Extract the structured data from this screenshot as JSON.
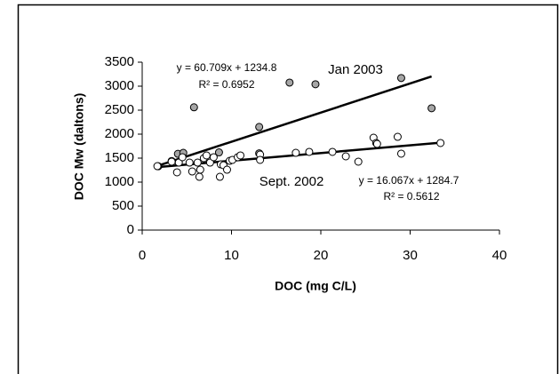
{
  "chart_data": {
    "type": "scatter",
    "x_label": "DOC (mg C/L)",
    "y_label": "DOC Mw (daltons)",
    "xlim": [
      0,
      40
    ],
    "xticks": [
      0,
      10,
      20,
      30,
      40
    ],
    "ylim": [
      0,
      3500
    ],
    "yticks": [
      0,
      500,
      1000,
      1500,
      2000,
      2500,
      3000,
      3500
    ],
    "series": [
      {
        "name": "Jan 2003",
        "color": "#a6a6a6",
        "x": [
          1.8,
          3.3,
          4.0,
          4.6,
          8.6,
          5.8,
          13.1,
          13.1,
          16.5,
          19.4,
          29.0,
          32.4
        ],
        "values": [
          1330,
          1440,
          1590,
          1610,
          1620,
          2560,
          2150,
          1600,
          3075,
          3040,
          3170,
          2540
        ],
        "trendline": {
          "slope": 60.709,
          "intercept": 1234.8,
          "equation": "y = 60.709x + 1234.8",
          "r2": "R² = 0.6952"
        }
      },
      {
        "name": "Sept. 2002",
        "color": "#ffffff",
        "x": [
          1.7,
          3.3,
          3.9,
          4.1,
          4.5,
          5.3,
          5.6,
          6.2,
          6.4,
          6.5,
          6.9,
          7.2,
          7.6,
          8.0,
          8.7,
          8.8,
          9.1,
          9.5,
          9.8,
          10.1,
          10.7,
          11.0,
          13.2,
          13.2,
          17.2,
          18.7,
          21.3,
          22.8,
          24.2,
          25.9,
          26.2,
          26.3,
          28.6,
          29.0,
          33.4
        ],
        "values": [
          1333,
          1426,
          1204,
          1407,
          1519,
          1407,
          1222,
          1407,
          1111,
          1259,
          1500,
          1556,
          1407,
          1519,
          1111,
          1370,
          1352,
          1259,
          1444,
          1463,
          1519,
          1556,
          1574,
          1463,
          1611,
          1630,
          1630,
          1537,
          1426,
          1926,
          1815,
          1796,
          1944,
          1593,
          1815
        ],
        "trendline": {
          "slope": 16.067,
          "intercept": 1284.7,
          "equation": "y = 16.067x + 1284.7",
          "r2": "R² = 0.5612"
        }
      }
    ]
  }
}
